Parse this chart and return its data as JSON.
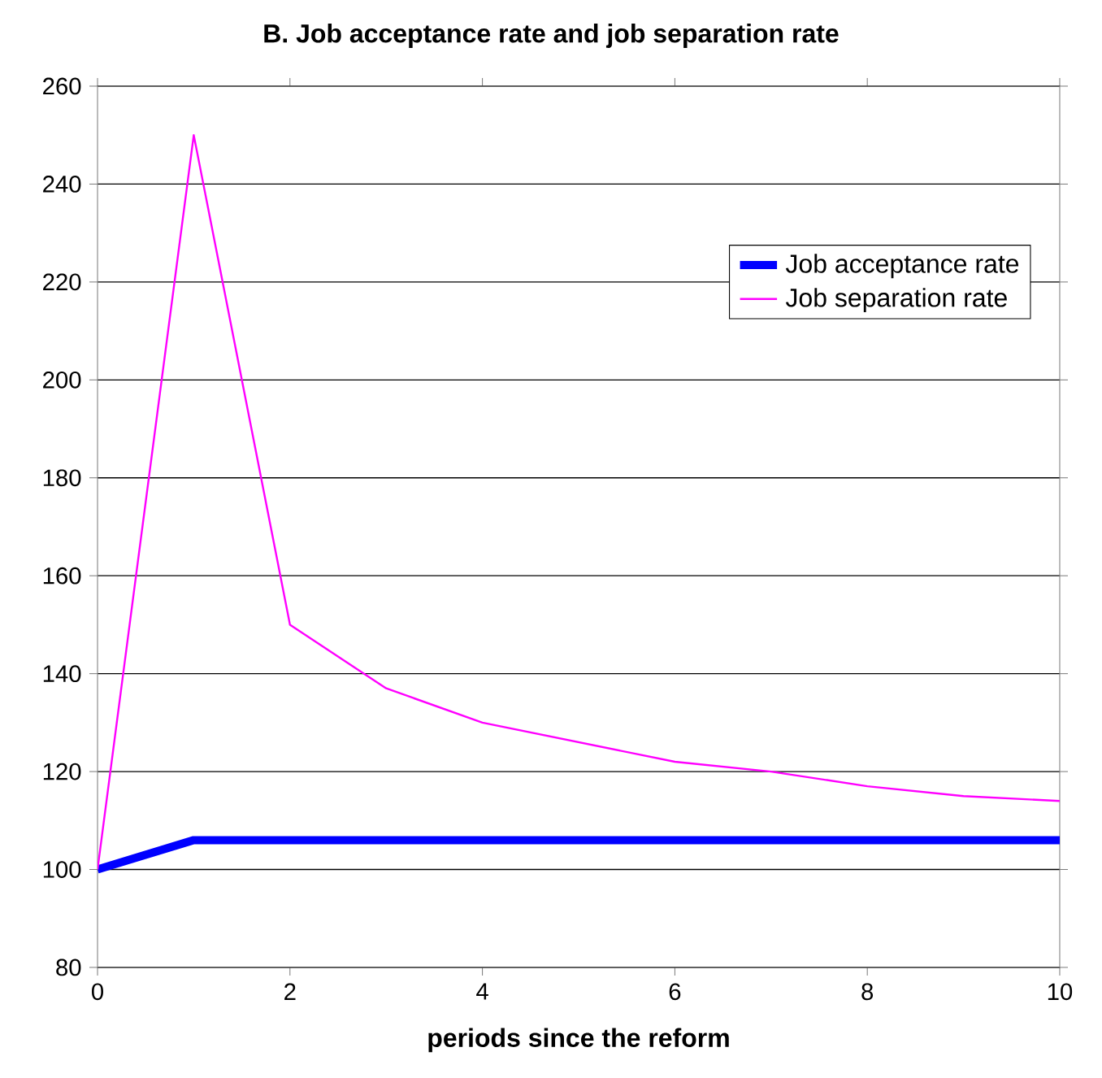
{
  "chart_data": {
    "type": "line",
    "title": "B. Job acceptance rate and job separation rate",
    "xlabel": "periods since the reform",
    "x": [
      0,
      1,
      2,
      3,
      4,
      5,
      6,
      7,
      8,
      9,
      10
    ],
    "series": [
      {
        "name": "Job acceptance rate",
        "color": "#0000ff",
        "values": [
          100,
          106,
          106,
          106,
          106,
          106,
          106,
          106,
          106,
          106,
          106
        ]
      },
      {
        "name": "Job separation rate",
        "color": "#ff00ff",
        "values": [
          100,
          250,
          150,
          137,
          130,
          126,
          122,
          120,
          117,
          115,
          114
        ]
      }
    ],
    "xlim": [
      0,
      10
    ],
    "ylim": [
      80,
      260
    ],
    "xticks": [
      0,
      2,
      4,
      6,
      8,
      10
    ],
    "yticks": [
      80,
      100,
      120,
      140,
      160,
      180,
      200,
      220,
      240,
      260
    ],
    "grid": "y",
    "legend": "top right",
    "marker": "none",
    "line_style": "solid"
  }
}
